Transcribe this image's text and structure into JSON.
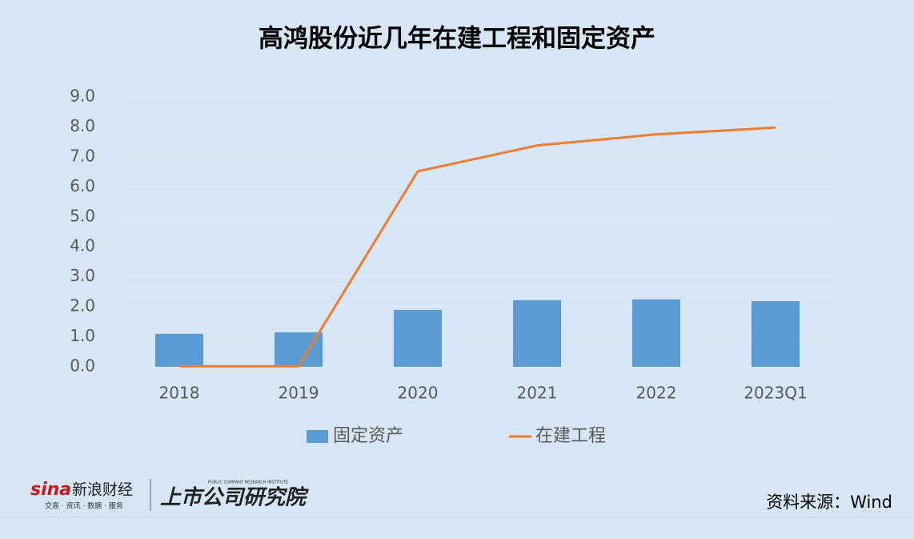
{
  "chart_data": {
    "type": "bar",
    "title": "高鸿股份近几年在建工程和固定资产",
    "categories": [
      "2018",
      "2019",
      "2020",
      "2021",
      "2022",
      "2023Q1"
    ],
    "series": [
      {
        "name": "固定资产",
        "type": "bar",
        "color": "#5b9bd5",
        "values": [
          1.1,
          1.15,
          1.9,
          2.22,
          2.25,
          2.19
        ]
      },
      {
        "name": "在建工程",
        "type": "line",
        "color": "#ed7d31",
        "values": [
          0.02,
          0.02,
          6.52,
          7.38,
          7.75,
          7.98
        ]
      }
    ],
    "ylim": [
      0,
      9
    ],
    "yticks": [
      {
        "value": 0,
        "label": "0.0"
      },
      {
        "value": 1,
        "label": "1.0"
      },
      {
        "value": 2,
        "label": "2.0"
      },
      {
        "value": 3,
        "label": "3.0"
      },
      {
        "value": 4,
        "label": "4.0"
      },
      {
        "value": 5,
        "label": "5.0"
      },
      {
        "value": 6,
        "label": "6.0"
      },
      {
        "value": 7,
        "label": "7.0"
      },
      {
        "value": 8,
        "label": "8.0"
      },
      {
        "value": 9,
        "label": "9.0"
      }
    ],
    "grid": true,
    "legend": "bottom",
    "source": "资料来源：Wind"
  },
  "branding": {
    "sina": "sina",
    "sina_cn": "新浪财经",
    "sina_tagline": "交易 · 资讯 · 数据 · 服务",
    "institute": "上市公司研究院",
    "institute_en": "PUBLIC COMPANY RESEARCH INSTITUTE"
  }
}
